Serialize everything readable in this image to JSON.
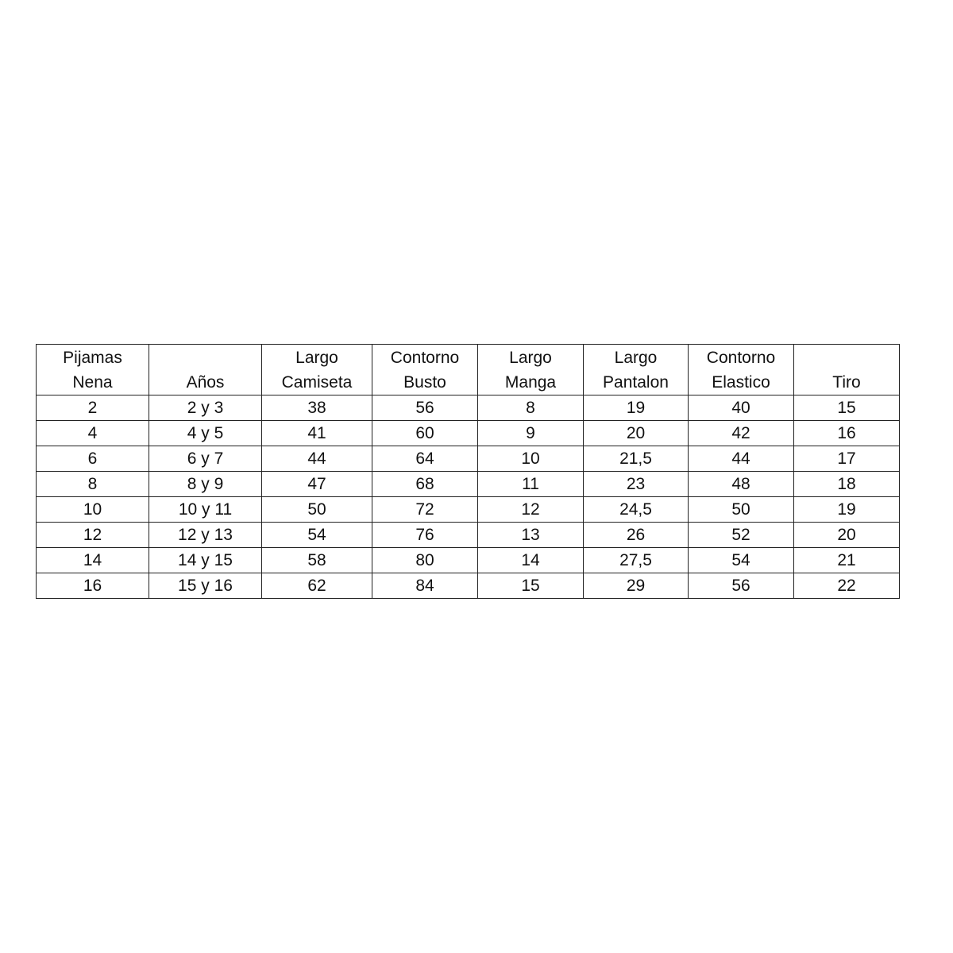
{
  "table": {
    "headers": [
      [
        "Pijamas",
        "Nena"
      ],
      [
        "",
        "Años"
      ],
      [
        "Largo",
        "Camiseta"
      ],
      [
        "Contorno",
        "Busto"
      ],
      [
        "Largo",
        "Manga"
      ],
      [
        "Largo",
        "Pantalon"
      ],
      [
        "Contorno",
        "Elastico"
      ],
      [
        "",
        "Tiro"
      ]
    ],
    "rows": [
      [
        "2",
        "2 y 3",
        "38",
        "56",
        "8",
        "19",
        "40",
        "15"
      ],
      [
        "4",
        "4 y 5",
        "41",
        "60",
        "9",
        "20",
        "42",
        "16"
      ],
      [
        "6",
        "6 y 7",
        "44",
        "64",
        "10",
        "21,5",
        "44",
        "17"
      ],
      [
        "8",
        "8 y 9",
        "47",
        "68",
        "11",
        "23",
        "48",
        "18"
      ],
      [
        "10",
        "10 y 11",
        "50",
        "72",
        "12",
        "24,5",
        "50",
        "19"
      ],
      [
        "12",
        "12 y 13",
        "54",
        "76",
        "13",
        "26",
        "52",
        "20"
      ],
      [
        "14",
        "14 y 15",
        "58",
        "80",
        "14",
        "27,5",
        "54",
        "21"
      ],
      [
        "16",
        "15 y 16",
        "62",
        "84",
        "15",
        "29",
        "56",
        "22"
      ]
    ]
  }
}
